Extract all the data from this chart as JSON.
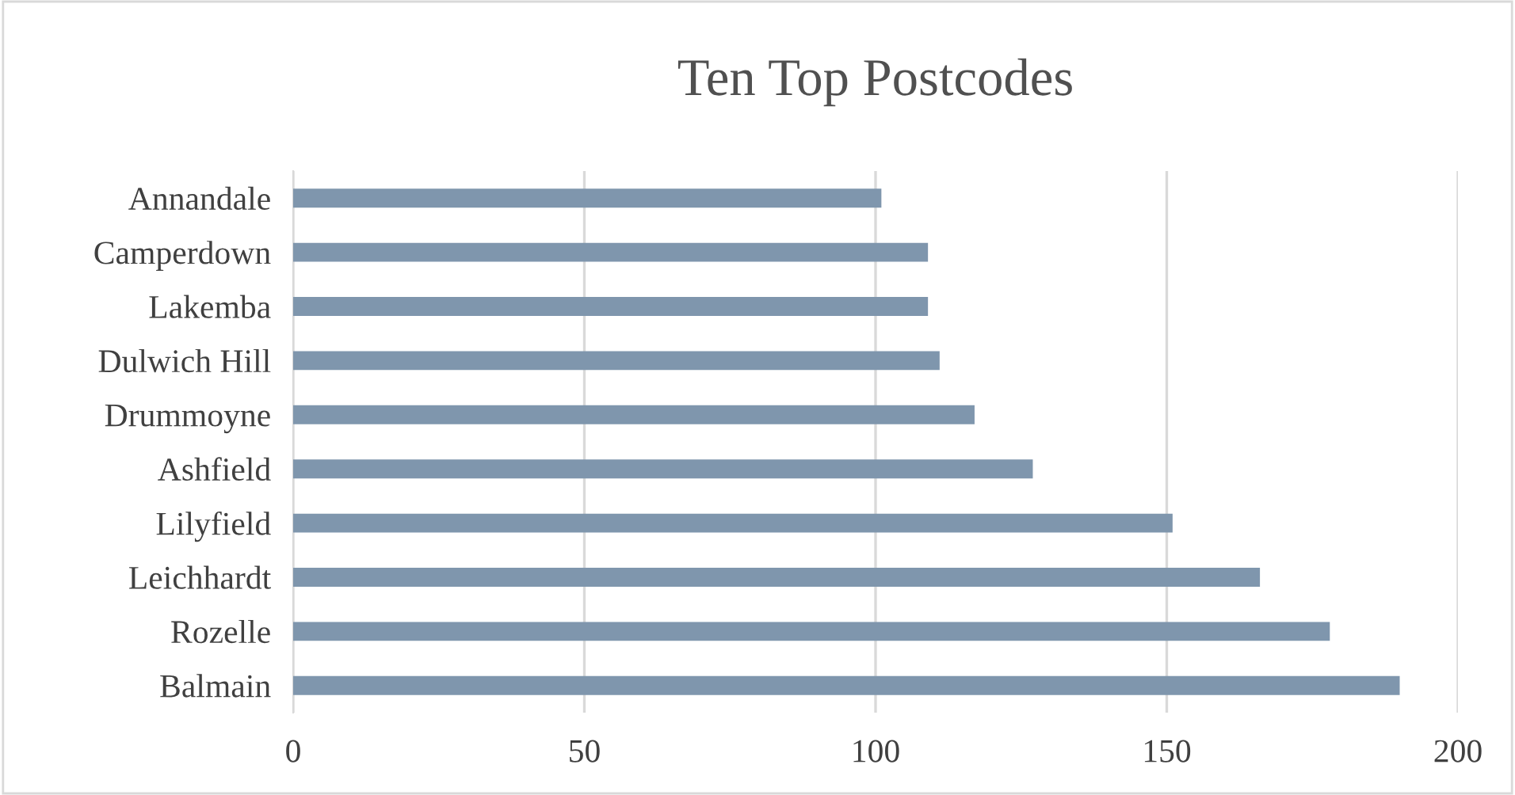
{
  "chart_data": {
    "type": "bar",
    "orientation": "horizontal",
    "title": "Ten Top Postcodes",
    "categories": [
      "Annandale",
      "Camperdown",
      "Lakemba",
      "Dulwich Hill",
      "Drummoyne",
      "Ashfield",
      "Lilyfield",
      "Leichhardt",
      "Rozelle",
      "Balmain"
    ],
    "values": [
      101,
      109,
      109,
      111,
      117,
      127,
      151,
      166,
      178,
      190
    ],
    "color": "#7f96ad",
    "xlim": [
      0,
      200
    ],
    "xticks": [
      0,
      50,
      100,
      150,
      200
    ],
    "grid": "x",
    "legend": false
  }
}
